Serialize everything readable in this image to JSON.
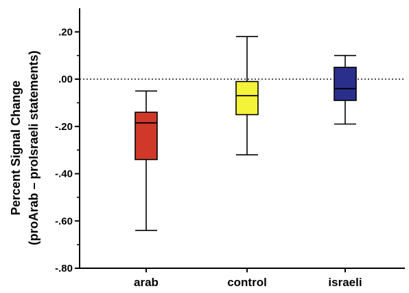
{
  "chart_data": {
    "type": "box",
    "title": "",
    "xlabel": "",
    "ylabel": "Percent Signal Change",
    "ylabel_sub": "(proArab – proIsraeli statements)",
    "ylim": [
      -0.8,
      0.3
    ],
    "yticks": [
      {
        "value": 0.2,
        "label": ".20"
      },
      {
        "value": 0.0,
        "label": ".00"
      },
      {
        "value": -0.2,
        "label": "-.20"
      },
      {
        "value": -0.4,
        "label": "-.40"
      },
      {
        "value": -0.6,
        "label": "-.60"
      },
      {
        "value": -0.8,
        "label": "-.80"
      }
    ],
    "reference_line": {
      "value": 0.0,
      "style": "dotted"
    },
    "grid": false,
    "legend": "none",
    "categories": [
      "arab",
      "control",
      "israeli"
    ],
    "series": [
      {
        "category": "arab",
        "color": "#d0392a",
        "min": -0.64,
        "q1": -0.34,
        "median": -0.185,
        "q3": -0.14,
        "max": -0.05
      },
      {
        "category": "control",
        "color": "#f5f23a",
        "min": -0.32,
        "q1": -0.15,
        "median": -0.07,
        "q3": -0.01,
        "max": 0.18
      },
      {
        "category": "israeli",
        "color": "#2b2f8c",
        "min": -0.19,
        "q1": -0.09,
        "median": -0.04,
        "q3": 0.05,
        "max": 0.1
      }
    ]
  }
}
